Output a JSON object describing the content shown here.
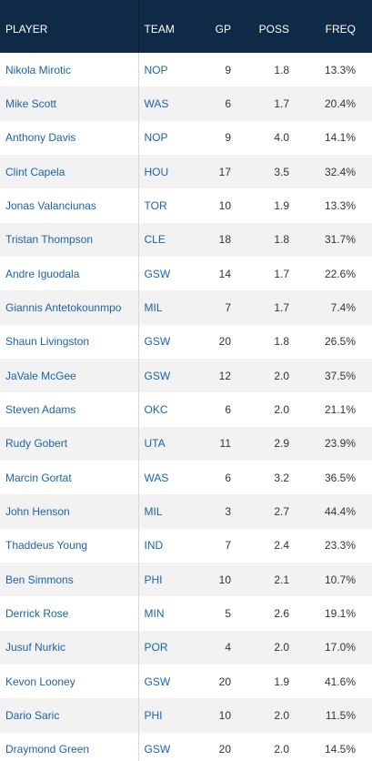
{
  "table": {
    "header": [
      "PLAYER",
      "TEAM",
      "GP",
      "POSS",
      "FREQ"
    ],
    "rows": [
      [
        "Nikola Mirotic",
        "NOP",
        "9",
        "1.8",
        "13.3%"
      ],
      [
        "Mike Scott",
        "WAS",
        "6",
        "1.7",
        "20.4%"
      ],
      [
        "Anthony Davis",
        "NOP",
        "9",
        "4.0",
        "14.1%"
      ],
      [
        "Clint Capela",
        "HOU",
        "17",
        "3.5",
        "32.4%"
      ],
      [
        "Jonas Valanciunas",
        "TOR",
        "10",
        "1.9",
        "13.3%"
      ],
      [
        "Tristan Thompson",
        "CLE",
        "18",
        "1.8",
        "31.7%"
      ],
      [
        "Andre Iguodala",
        "GSW",
        "14",
        "1.7",
        "22.6%"
      ],
      [
        "Giannis Antetokounmpo",
        "MIL",
        "7",
        "1.7",
        "7.4%"
      ],
      [
        "Shaun Livingston",
        "GSW",
        "20",
        "1.8",
        "26.5%"
      ],
      [
        "JaVale McGee",
        "GSW",
        "12",
        "2.0",
        "37.5%"
      ],
      [
        "Steven Adams",
        "OKC",
        "6",
        "2.0",
        "21.1%"
      ],
      [
        "Rudy Gobert",
        "UTA",
        "11",
        "2.9",
        "23.9%"
      ],
      [
        "Marcin Gortat",
        "WAS",
        "6",
        "3.2",
        "36.5%"
      ],
      [
        "John Henson",
        "MIL",
        "3",
        "2.7",
        "44.4%"
      ],
      [
        "Thaddeus Young",
        "IND",
        "7",
        "2.4",
        "23.3%"
      ],
      [
        "Ben Simmons",
        "PHI",
        "10",
        "2.1",
        "10.7%"
      ],
      [
        "Derrick Rose",
        "MIN",
        "5",
        "2.6",
        "19.1%"
      ],
      [
        "Jusuf Nurkic",
        "POR",
        "4",
        "2.0",
        "17.0%"
      ],
      [
        "Kevon Looney",
        "GSW",
        "20",
        "1.9",
        "41.6%"
      ],
      [
        "Dario Saric",
        "PHI",
        "10",
        "2.0",
        "11.5%"
      ],
      [
        "Draymond Green",
        "GSW",
        "20",
        "2.0",
        "14.5%"
      ]
    ]
  }
}
